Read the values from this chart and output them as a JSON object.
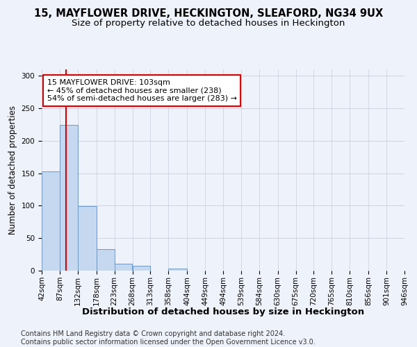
{
  "title": "15, MAYFLOWER DRIVE, HECKINGTON, SLEAFORD, NG34 9UX",
  "subtitle": "Size of property relative to detached houses in Heckington",
  "xlabel": "Distribution of detached houses by size in Heckington",
  "ylabel": "Number of detached properties",
  "bin_edges": [
    42,
    87,
    132,
    178,
    223,
    268,
    313,
    358,
    404,
    449,
    494,
    539,
    584,
    630,
    675,
    720,
    765,
    810,
    856,
    901,
    946
  ],
  "counts": [
    153,
    225,
    99,
    33,
    11,
    7,
    0,
    3,
    0,
    0,
    0,
    0,
    0,
    0,
    0,
    0,
    0,
    0,
    0,
    0
  ],
  "bar_color": "#c5d8f0",
  "bar_edge_color": "#6699cc",
  "vline_x": 103,
  "vline_color": "#cc0000",
  "annotation_line1": "15 MAYFLOWER DRIVE: 103sqm",
  "annotation_line2": "← 45% of detached houses are smaller (238)",
  "annotation_line3": "54% of semi-detached houses are larger (283) →",
  "annotation_box_color": "#ffffff",
  "annotation_box_edge_color": "#cc0000",
  "ylim": [
    0,
    310
  ],
  "yticks": [
    0,
    50,
    100,
    150,
    200,
    250,
    300
  ],
  "footnote": "Contains HM Land Registry data © Crown copyright and database right 2024.\nContains public sector information licensed under the Open Government Licence v3.0.",
  "title_fontsize": 10.5,
  "subtitle_fontsize": 9.5,
  "xlabel_fontsize": 9.5,
  "ylabel_fontsize": 8.5,
  "tick_fontsize": 7.5,
  "annotation_fontsize": 8,
  "footnote_fontsize": 7,
  "bg_color": "#eef2fa"
}
